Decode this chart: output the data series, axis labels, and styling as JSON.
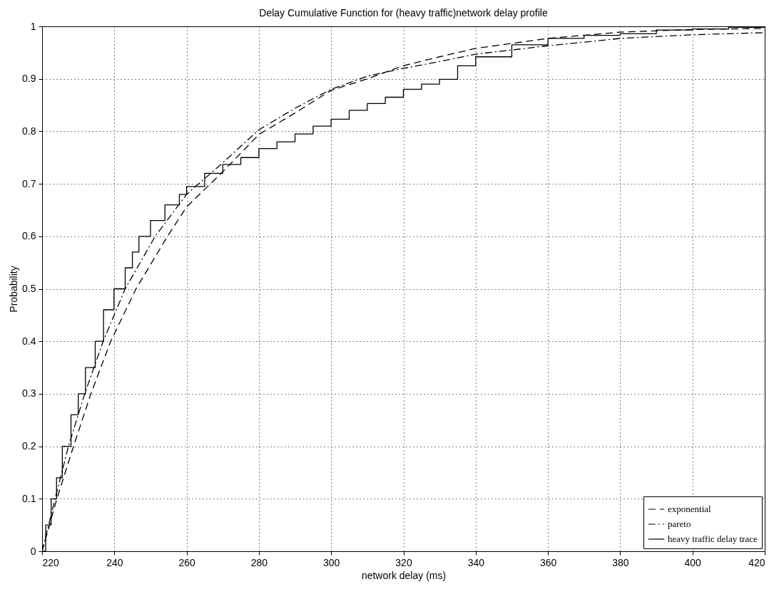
{
  "chart_data": {
    "type": "line",
    "title": "Delay Cumulative Function for (heavy traffic)network delay profile",
    "xlabel": "network delay (ms)",
    "ylabel": "Probability",
    "xlim": [
      220,
      420
    ],
    "xticks": [
      220,
      240,
      260,
      280,
      300,
      320,
      340,
      360,
      380,
      400,
      420
    ],
    "ylim": [
      0,
      1
    ],
    "yticks": [
      0,
      0.1,
      0.2,
      0.3,
      0.4,
      0.5,
      0.6,
      0.7,
      0.8,
      0.9,
      1
    ],
    "grid": true,
    "legend": "bottom right",
    "series": [
      {
        "name": "exponential",
        "color": "#000000",
        "type": "line",
        "line_style": "dashed",
        "x": [
          220,
          224.1,
          228.7,
          233.5,
          239,
          246,
          254.7,
          260,
          270,
          280,
          290,
          300,
          310,
          320,
          330,
          340,
          360,
          380,
          400,
          420
        ],
        "values": [
          0,
          0.1,
          0.2,
          0.3,
          0.4,
          0.5,
          0.6,
          0.656,
          0.723,
          0.794,
          0.835,
          0.878,
          0.9,
          0.925,
          0.942,
          0.958,
          0.977,
          0.989,
          0.994,
          0.996
        ]
      },
      {
        "name": "pareto",
        "color": "#000000",
        "type": "line",
        "line_style": "dashdot",
        "x": [
          220,
          223.6,
          227.3,
          231.8,
          236.9,
          243,
          251.3,
          260,
          270,
          280,
          290,
          300,
          310,
          320,
          330,
          340,
          360,
          380,
          400,
          420
        ],
        "values": [
          0,
          0.1,
          0.2,
          0.3,
          0.4,
          0.5,
          0.6,
          0.68,
          0.74,
          0.803,
          0.844,
          0.88,
          0.905,
          0.92,
          0.933,
          0.947,
          0.963,
          0.977,
          0.984,
          0.988
        ]
      },
      {
        "name": "heavy traffic delay trace",
        "color": "#000000",
        "type": "step",
        "line_style": "solid",
        "x": [
          220,
          221,
          222.5,
          224,
          225.6,
          228,
          230,
          232,
          234.7,
          237,
          239.9,
          243,
          245,
          246.8,
          250,
          254,
          258,
          260,
          265,
          270,
          275,
          280,
          285,
          290,
          295,
          300,
          305,
          310,
          315,
          320,
          325,
          330,
          335,
          340,
          350,
          360,
          370,
          380,
          390,
          400,
          410,
          420
        ],
        "values": [
          0,
          0.05,
          0.1,
          0.14,
          0.2,
          0.26,
          0.3,
          0.35,
          0.4,
          0.46,
          0.5,
          0.54,
          0.57,
          0.6,
          0.63,
          0.66,
          0.68,
          0.695,
          0.72,
          0.737,
          0.75,
          0.767,
          0.78,
          0.795,
          0.81,
          0.823,
          0.84,
          0.853,
          0.865,
          0.88,
          0.89,
          0.899,
          0.925,
          0.942,
          0.965,
          0.977,
          0.983,
          0.986,
          0.993,
          0.995,
          0.998,
          1.0
        ]
      }
    ]
  }
}
